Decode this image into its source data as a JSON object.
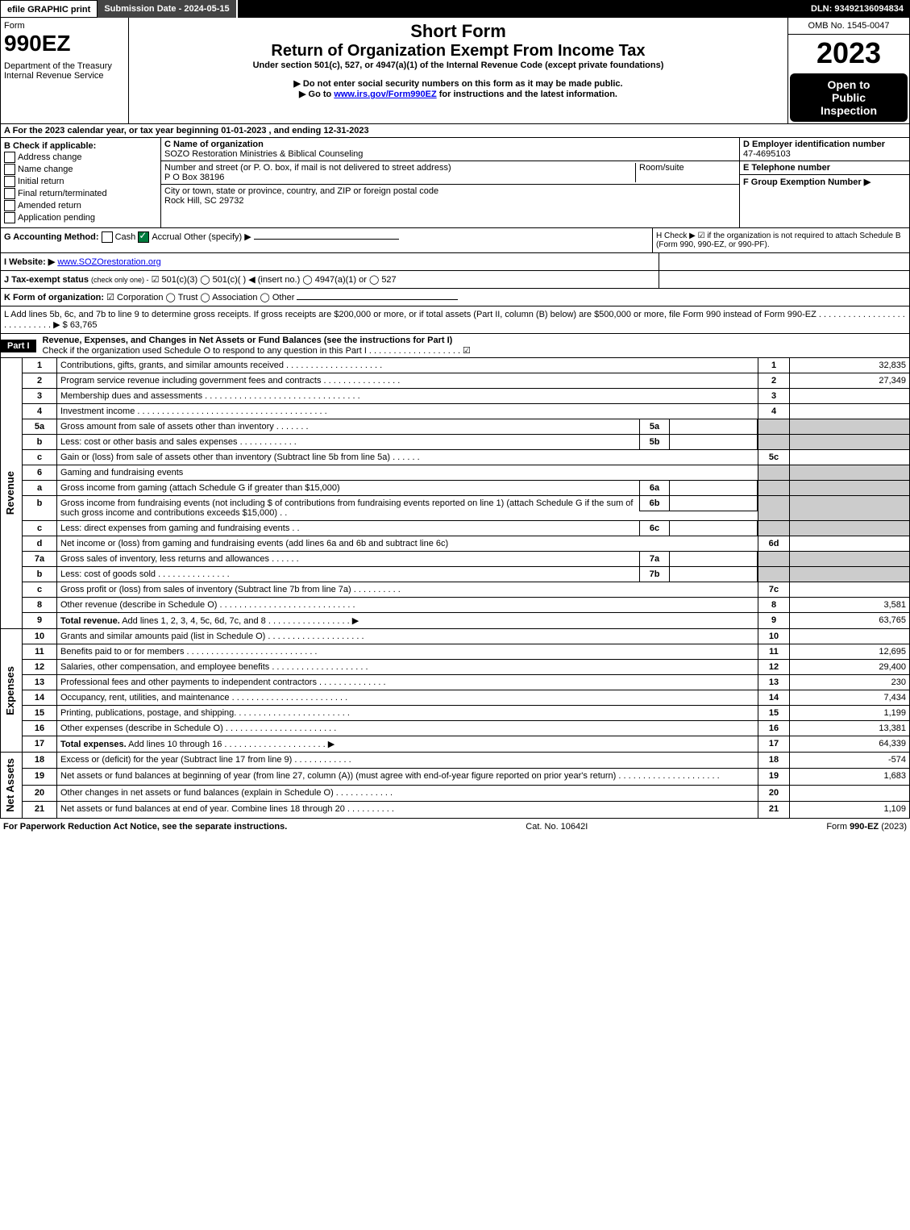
{
  "topbar": {
    "efile": "efile GRAPHIC",
    "print": "print",
    "submission_label": "Submission Date - 2024-05-15",
    "dln_label": "DLN: 93492136094834"
  },
  "header": {
    "form_label": "Form",
    "form_no": "990EZ",
    "dept": "Department of the Treasury",
    "irs": "Internal Revenue Service",
    "title1": "Short Form",
    "title2": "Return of Organization Exempt From Income Tax",
    "subtitle": "Under section 501(c), 527, or 4947(a)(1) of the Internal Revenue Code (except private foundations)",
    "instr1": "▶ Do not enter social security numbers on this form as it may be made public.",
    "instr2_pre": "▶ Go to ",
    "instr2_link": "www.irs.gov/Form990EZ",
    "instr2_post": " for instructions and the latest information.",
    "omb": "OMB No. 1545-0047",
    "year": "2023",
    "open1": "Open to",
    "open2": "Public",
    "open3": "Inspection"
  },
  "a": {
    "text": "A  For the 2023 calendar year, or tax year beginning 01-01-2023 , and ending 12-31-2023"
  },
  "b": {
    "label": "B  Check if applicable:",
    "opts": [
      "Address change",
      "Name change",
      "Initial return",
      "Final return/terminated",
      "Amended return",
      "Application pending"
    ]
  },
  "c": {
    "name_lbl": "C Name of organization",
    "name": "SOZO Restoration Ministries & Biblical Counseling",
    "addr_lbl": "Number and street (or P. O. box, if mail is not delivered to street address)",
    "room_lbl": "Room/suite",
    "addr": "P O Box 38196",
    "city_lbl": "City or town, state or province, country, and ZIP or foreign postal code",
    "city": "Rock Hill, SC  29732"
  },
  "d": {
    "lbl": "D Employer identification number",
    "val": "47-4695103"
  },
  "e": {
    "lbl": "E Telephone number",
    "val": ""
  },
  "f": {
    "lbl": "F Group Exemption Number  ▶",
    "val": ""
  },
  "g": {
    "lbl": "G Accounting Method:",
    "cash": "Cash",
    "accrual": "Accrual",
    "other": "Other (specify) ▶"
  },
  "h": {
    "text": "H   Check ▶ ☑ if the organization is not required to attach Schedule B (Form 990, 990-EZ, or 990-PF)."
  },
  "i": {
    "lbl": "I Website: ▶",
    "val": "www.SOZOrestoration.org"
  },
  "j": {
    "lbl": "J Tax-exempt status",
    "note": "(check only one) -",
    "opts": "☑ 501(c)(3)  ◯ 501(c)(  ) ◀ (insert no.)  ◯ 4947(a)(1) or  ◯ 527"
  },
  "k": {
    "lbl": "K Form of organization:",
    "opts": "☑ Corporation  ◯ Trust  ◯ Association  ◯ Other"
  },
  "l": {
    "text": "L Add lines 5b, 6c, and 7b to line 9 to determine gross receipts. If gross receipts are $200,000 or more, or if total assets (Part II, column (B) below) are $500,000 or more, file Form 990 instead of Form 990-EZ . . . . . . . . . . . . . . . . . . . . . . . . . . . . ▶ $ 63,765"
  },
  "part1": {
    "label": "Part I",
    "title": "Revenue, Expenses, and Changes in Net Assets or Fund Balances (see the instructions for Part I)",
    "check": "Check if the organization used Schedule O to respond to any question in this Part I . . . . . . . . . . . . . . . . . . . ☑"
  },
  "side": {
    "rev": "Revenue",
    "exp": "Expenses",
    "net": "Net Assets"
  },
  "lines_rev": [
    {
      "no": "1",
      "desc": "Contributions, gifts, grants, and similar amounts received . . . . . . . . . . . . . . . . . . . .",
      "box": "1",
      "amt": "32,835"
    },
    {
      "no": "2",
      "desc": "Program service revenue including government fees and contracts . . . . . . . . . . . . . . . .",
      "box": "2",
      "amt": "27,349"
    },
    {
      "no": "3",
      "desc": "Membership dues and assessments . . . . . . . . . . . . . . . . . . . . . . . . . . . . . . . .",
      "box": "3",
      "amt": ""
    },
    {
      "no": "4",
      "desc": "Investment income . . . . . . . . . . . . . . . . . . . . . . . . . . . . . . . . . . . . . . .",
      "box": "4",
      "amt": ""
    },
    {
      "no": "5a",
      "desc": "Gross amount from sale of assets other than inventory . . . . . . .",
      "mini": "5a",
      "box": "",
      "amt": "",
      "shade": true
    },
    {
      "no": "b",
      "desc": "Less: cost or other basis and sales expenses . . . . . . . . . . . .",
      "mini": "5b",
      "box": "",
      "amt": "",
      "shade": true
    },
    {
      "no": "c",
      "desc": "Gain or (loss) from sale of assets other than inventory (Subtract line 5b from line 5a) . . . . . .",
      "box": "5c",
      "amt": ""
    },
    {
      "no": "6",
      "desc": "Gaming and fundraising events",
      "box": "",
      "amt": "",
      "shade": true
    },
    {
      "no": "a",
      "desc": "Gross income from gaming (attach Schedule G if greater than $15,000)",
      "mini": "6a",
      "box": "",
      "amt": "",
      "shade": true
    },
    {
      "no": "b",
      "desc": "Gross income from fundraising events (not including $                    of contributions from fundraising events reported on line 1) (attach Schedule G if the sum of such gross income and contributions exceeds $15,000)   .  .",
      "mini": "6b",
      "box": "",
      "amt": "",
      "shade": true
    },
    {
      "no": "c",
      "desc": "Less: direct expenses from gaming and fundraising events   .  .",
      "mini": "6c",
      "box": "",
      "amt": "",
      "shade": true
    },
    {
      "no": "d",
      "desc": "Net income or (loss) from gaming and fundraising events (add lines 6a and 6b and subtract line 6c)",
      "box": "6d",
      "amt": ""
    },
    {
      "no": "7a",
      "desc": "Gross sales of inventory, less returns and allowances . . . . . .",
      "mini": "7a",
      "box": "",
      "amt": "",
      "shade": true
    },
    {
      "no": "b",
      "desc": "Less: cost of goods sold        . . . . . . . . . . . . . . .",
      "mini": "7b",
      "box": "",
      "amt": "",
      "shade": true
    },
    {
      "no": "c",
      "desc": "Gross profit or (loss) from sales of inventory (Subtract line 7b from line 7a) . . . . . . . . . .",
      "box": "7c",
      "amt": ""
    },
    {
      "no": "8",
      "desc": "Other revenue (describe in Schedule O) . . . . . . . . . . . . . . . . . . . . . . . . . . . .",
      "box": "8",
      "amt": "3,581"
    },
    {
      "no": "9",
      "desc": "Total revenue. Add lines 1, 2, 3, 4, 5c, 6d, 7c, and 8  . . . . . . . . . . . . . . . . .   ▶",
      "box": "9",
      "amt": "63,765",
      "bold": true
    }
  ],
  "lines_exp": [
    {
      "no": "10",
      "desc": "Grants and similar amounts paid (list in Schedule O) . . . . . . . . . . . . . . . . . . . .",
      "box": "10",
      "amt": ""
    },
    {
      "no": "11",
      "desc": "Benefits paid to or for members     . . . . . . . . . . . . . . . . . . . . . . . . . . .",
      "box": "11",
      "amt": "12,695"
    },
    {
      "no": "12",
      "desc": "Salaries, other compensation, and employee benefits . . . . . . . . . . . . . . . . . . . .",
      "box": "12",
      "amt": "29,400"
    },
    {
      "no": "13",
      "desc": "Professional fees and other payments to independent contractors . . . . . . . . . . . . . .",
      "box": "13",
      "amt": "230"
    },
    {
      "no": "14",
      "desc": "Occupancy, rent, utilities, and maintenance . . . . . . . . . . . . . . . . . . . . . . . .",
      "box": "14",
      "amt": "7,434"
    },
    {
      "no": "15",
      "desc": "Printing, publications, postage, and shipping. . . . . . . . . . . . . . . . . . . . . . . .",
      "box": "15",
      "amt": "1,199"
    },
    {
      "no": "16",
      "desc": "Other expenses (describe in Schedule O)     . . . . . . . . . . . . . . . . . . . . . . .",
      "box": "16",
      "amt": "13,381"
    },
    {
      "no": "17",
      "desc": "Total expenses. Add lines 10 through 16    . . . . . . . . . . . . . . . . . . . . .   ▶",
      "box": "17",
      "amt": "64,339",
      "bold": true
    }
  ],
  "lines_net": [
    {
      "no": "18",
      "desc": "Excess or (deficit) for the year (Subtract line 17 from line 9)       . . . . . . . . . . . .",
      "box": "18",
      "amt": "-574"
    },
    {
      "no": "19",
      "desc": "Net assets or fund balances at beginning of year (from line 27, column (A)) (must agree with end-of-year figure reported on prior year's return) . . . . . . . . . . . . . . . . . . . . .",
      "box": "19",
      "amt": "1,683"
    },
    {
      "no": "20",
      "desc": "Other changes in net assets or fund balances (explain in Schedule O) . . . . . . . . . . . .",
      "box": "20",
      "amt": ""
    },
    {
      "no": "21",
      "desc": "Net assets or fund balances at end of year. Combine lines 18 through 20 . . . . . . . . . .",
      "box": "21",
      "amt": "1,109"
    }
  ],
  "footer": {
    "left": "For Paperwork Reduction Act Notice, see the separate instructions.",
    "mid": "Cat. No. 10642I",
    "right_pre": "Form ",
    "right_form": "990-EZ",
    "right_post": " (2023)"
  },
  "colors": {
    "black": "#000000",
    "white": "#ffffff",
    "grey": "#cccccc",
    "linkblue": "#0000ee",
    "checkgreen": "#007a3d"
  }
}
